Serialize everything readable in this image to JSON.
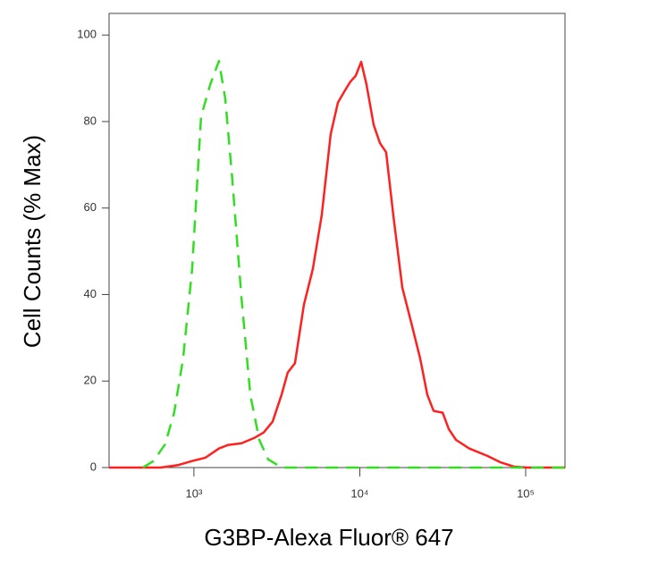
{
  "chart_data": {
    "type": "line",
    "x_label": "G3BP-Alexa Fluor® 647",
    "y_label": "Cell Counts (% Max)",
    "xscale": "log",
    "xlim": [
      308,
      172600
    ],
    "ylim": [
      0,
      105
    ],
    "xticks": [
      {
        "value": 1000,
        "label": "10³"
      },
      {
        "value": 10000,
        "label": "10⁴"
      },
      {
        "value": 100000,
        "label": "10⁵"
      }
    ],
    "yticks": [
      0,
      20,
      40,
      60,
      80,
      100
    ],
    "grid": false,
    "series": [
      {
        "color": "#ff2020",
        "dash": false,
        "x": [
          308,
          631,
          809,
          975,
          1175,
          1416,
          1603,
          1932,
          2328,
          2633,
          2980,
          3373,
          3681,
          4066,
          4600,
          5210,
          5900,
          6680,
          7380,
          8050,
          8770,
          9450,
          10190,
          10970,
          12120,
          13220,
          14410,
          15920,
          18030,
          20410,
          23110,
          25530,
          27860,
          31550,
          34390,
          38000,
          45710,
          58610,
          70630,
          85110,
          102600,
          172600
        ],
        "values": [
          0,
          0,
          0.6,
          1.5,
          2.3,
          4.4,
          5.2,
          5.6,
          6.9,
          8.1,
          10.6,
          16.8,
          22.0,
          24.1,
          37.6,
          45.9,
          58.4,
          77.1,
          84.4,
          86.9,
          89.2,
          90.6,
          93.8,
          88.6,
          79.2,
          75.0,
          72.9,
          58.4,
          41.6,
          33.5,
          25.2,
          16.8,
          13.1,
          12.7,
          8.9,
          6.4,
          4.4,
          2.7,
          1.2,
          0.2,
          0,
          0
        ]
      },
      {
        "color": "#33dd22",
        "dash": true,
        "x": [
          493,
          571,
          671,
          760,
          861,
          975,
          1104,
          1250,
          1416,
          1545,
          1706,
          1932,
          2188,
          2477,
          2800,
          3373,
          172600
        ],
        "values": [
          0,
          1.5,
          5.4,
          12.7,
          25.2,
          45.9,
          81.1,
          88.4,
          94.0,
          85.2,
          66.5,
          39.5,
          16.8,
          6.4,
          1.9,
          0,
          0
        ]
      }
    ]
  }
}
